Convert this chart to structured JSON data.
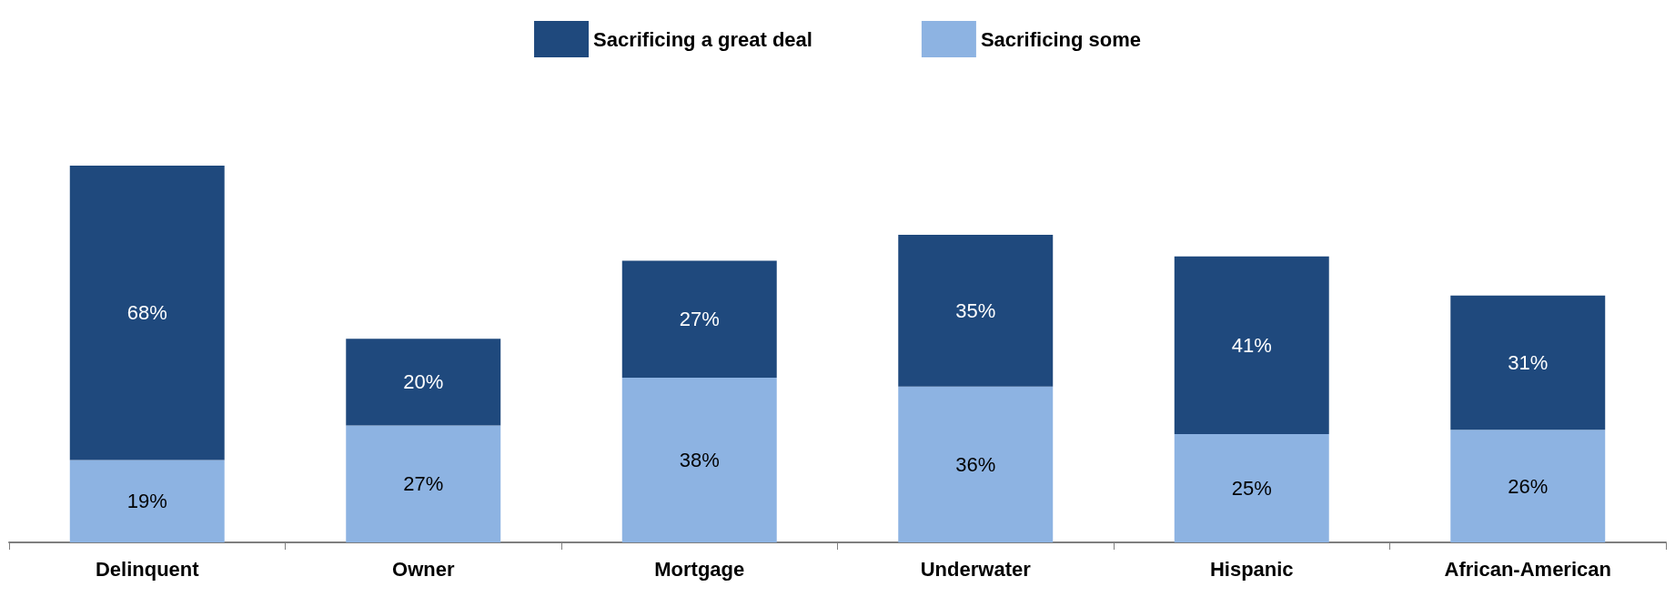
{
  "chart_data": {
    "type": "bar",
    "stacked": true,
    "legend": "top",
    "categories": [
      "Delinquent",
      "Owner",
      "Mortgage",
      "Underwater",
      "Hispanic",
      "African-American"
    ],
    "series": [
      {
        "name": "Sacrificing some",
        "color": "#8db3e2",
        "values": [
          19,
          27,
          38,
          36,
          25,
          26
        ],
        "value_labels": [
          "19%",
          "27%",
          "38%",
          "36%",
          "25%",
          "26%"
        ]
      },
      {
        "name": "Sacrificing a great deal",
        "color": "#1f497d",
        "values": [
          68,
          20,
          27,
          35,
          41,
          31
        ],
        "value_labels": [
          "68%",
          "20%",
          "27%",
          "35%",
          "41%",
          "31%"
        ]
      }
    ]
  }
}
